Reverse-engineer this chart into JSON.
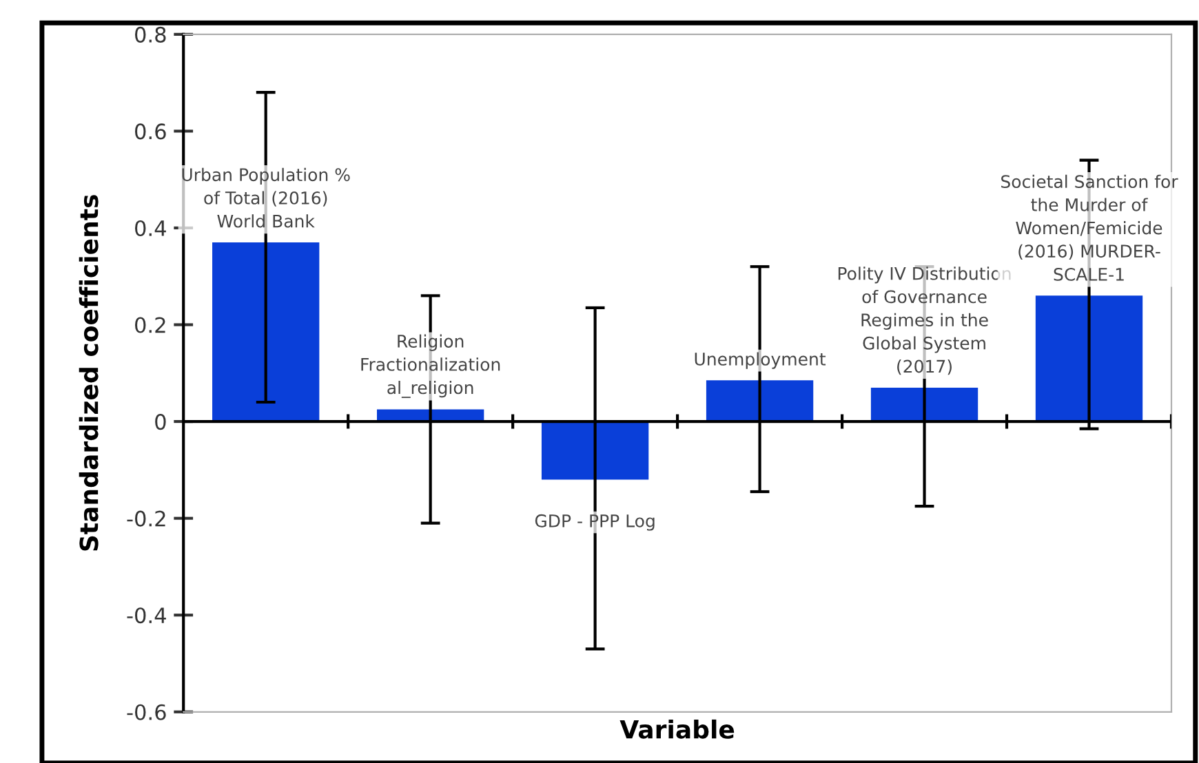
{
  "chart_data": {
    "type": "bar",
    "xlabel": "Variable",
    "ylabel": "Standardized coefficients",
    "categories": [
      "Urban Population %\nof Total (2016)\nWorld Bank",
      "Religion\nFractionalization\nal_religion",
      "GDP - PPP Log",
      "Unemployment",
      "Polity IV Distribution\nof Governance\nRegimes in the\nGlobal System\n(2017)",
      "Societal Sanction for\nthe Murder of\nWomen/Femicide\n(2016) MURDER-\nSCALE-1"
    ],
    "values": [
      0.37,
      0.025,
      -0.12,
      0.085,
      0.07,
      0.26
    ],
    "errors": [
      [
        0.04,
        0.68
      ],
      [
        -0.21,
        0.26
      ],
      [
        -0.47,
        0.235
      ],
      [
        -0.145,
        0.32
      ],
      [
        -0.175,
        0.32
      ],
      [
        -0.015,
        0.54
      ]
    ],
    "color": "#0a3fd9",
    "ylim": [
      -0.6,
      0.8
    ],
    "yticks": [
      -0.6,
      -0.4,
      -0.2,
      0,
      0.2,
      0.4,
      0.6,
      0.8
    ],
    "legend": false
  }
}
